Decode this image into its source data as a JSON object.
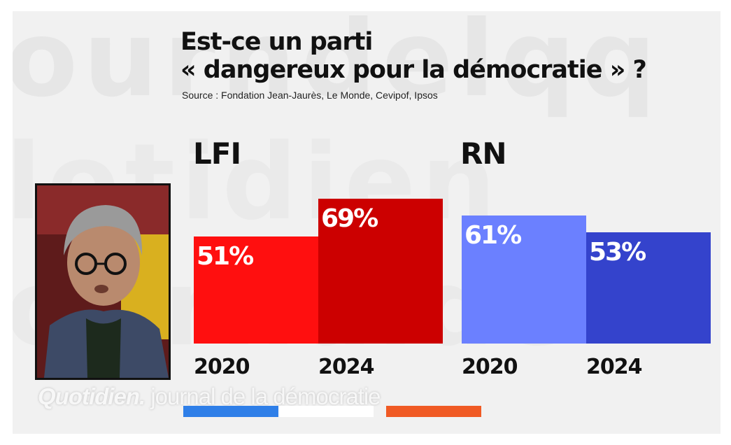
{
  "slide": {
    "title_line1": "Est-ce un parti",
    "title_line2": "« dangereux pour la démocratie » ?",
    "source": "Source : Fondation Jean-Jaurès, Le Monde, Cevipof, Ipsos"
  },
  "watermark": {
    "line1": "ourndelqq",
    "line2": "lotidien",
    "line3": "ournalde"
  },
  "footer": {
    "brand": "Quotidien.",
    "tagline": "journal de la démocratie",
    "stripe_colors": [
      "#2f7fe8",
      "#ffffff",
      "#f05a24"
    ]
  },
  "photo": {
    "icon": "person-portrait-icon"
  },
  "chart_data": [
    {
      "type": "bar",
      "title": "LFI",
      "categories": [
        "2020",
        "2024"
      ],
      "values": [
        51,
        69
      ],
      "value_labels": [
        "51%",
        "69%"
      ],
      "unit": "%",
      "colors": [
        "#ff0f0f",
        "#cc0000"
      ],
      "ylim": [
        0,
        100
      ],
      "grid": false,
      "xlabel": "",
      "ylabel": ""
    },
    {
      "type": "bar",
      "title": "RN",
      "categories": [
        "2020",
        "2024"
      ],
      "values": [
        61,
        53
      ],
      "value_labels": [
        "61%",
        "53%"
      ],
      "unit": "%",
      "colors": [
        "#6b80ff",
        "#3443cc"
      ],
      "ylim": [
        0,
        100
      ],
      "grid": false,
      "xlabel": "",
      "ylabel": ""
    }
  ]
}
